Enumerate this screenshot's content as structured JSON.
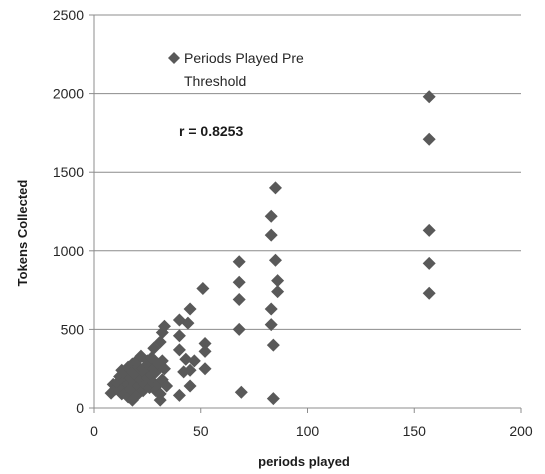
{
  "chart_data": {
    "type": "scatter",
    "xlabel": "periods played",
    "ylabel": "Tokens Collected",
    "xlim": [
      0,
      200
    ],
    "ylim": [
      0,
      2500
    ],
    "x_ticks": [
      "0",
      "50",
      "100",
      "150",
      "200"
    ],
    "y_ticks": [
      "0",
      "500",
      "1000",
      "1500",
      "2000",
      "2500"
    ],
    "grid": "horizontal",
    "legend_position": "top-left",
    "annotation": "r = 0.8253",
    "marker_color": "#595959",
    "series": [
      {
        "name": "Periods Played Pre Threshold",
        "legend_lines": [
          "Periods Played Pre",
          "Threshold"
        ],
        "points": [
          [
            8,
            95
          ],
          [
            9,
            150
          ],
          [
            10,
            120
          ],
          [
            11,
            160
          ],
          [
            12,
            110
          ],
          [
            12,
            200
          ],
          [
            13,
            90
          ],
          [
            13,
            240
          ],
          [
            14,
            170
          ],
          [
            14,
            130
          ],
          [
            15,
            100
          ],
          [
            15,
            210
          ],
          [
            16,
            150
          ],
          [
            16,
            260
          ],
          [
            16,
            70
          ],
          [
            17,
            190
          ],
          [
            17,
            120
          ],
          [
            18,
            280
          ],
          [
            18,
            50
          ],
          [
            18,
            230
          ],
          [
            19,
            150
          ],
          [
            19,
            100
          ],
          [
            20,
            200
          ],
          [
            20,
            300
          ],
          [
            20,
            80
          ],
          [
            21,
            260
          ],
          [
            21,
            140
          ],
          [
            22,
            180
          ],
          [
            22,
            330
          ],
          [
            23,
            110
          ],
          [
            23,
            250
          ],
          [
            24,
            220
          ],
          [
            24,
            150
          ],
          [
            25,
            300
          ],
          [
            25,
            190
          ],
          [
            26,
            270
          ],
          [
            26,
            130
          ],
          [
            27,
            210
          ],
          [
            27,
            320
          ],
          [
            28,
            250
          ],
          [
            28,
            160
          ],
          [
            28,
            380
          ],
          [
            29,
            110
          ],
          [
            29,
            230
          ],
          [
            30,
            280
          ],
          [
            30,
            150
          ],
          [
            31,
            420
          ],
          [
            31,
            90
          ],
          [
            31,
            50
          ],
          [
            32,
            480
          ],
          [
            32,
            300
          ],
          [
            32,
            180
          ],
          [
            33,
            520
          ],
          [
            33,
            250
          ],
          [
            34,
            140
          ],
          [
            40,
            560
          ],
          [
            40,
            460
          ],
          [
            40,
            370
          ],
          [
            40,
            80
          ],
          [
            42,
            230
          ],
          [
            43,
            310
          ],
          [
            44,
            540
          ],
          [
            45,
            630
          ],
          [
            45,
            240
          ],
          [
            45,
            140
          ],
          [
            47,
            300
          ],
          [
            51,
            760
          ],
          [
            52,
            410
          ],
          [
            52,
            360
          ],
          [
            52,
            250
          ],
          [
            68,
            930
          ],
          [
            68,
            800
          ],
          [
            68,
            690
          ],
          [
            68,
            500
          ],
          [
            69,
            100
          ],
          [
            83,
            1220
          ],
          [
            83,
            1100
          ],
          [
            83,
            630
          ],
          [
            83,
            530
          ],
          [
            84,
            400
          ],
          [
            84,
            60
          ],
          [
            85,
            1400
          ],
          [
            85,
            940
          ],
          [
            86,
            810
          ],
          [
            86,
            740
          ],
          [
            157,
            1980
          ],
          [
            157,
            1710
          ],
          [
            157,
            1130
          ],
          [
            157,
            920
          ],
          [
            157,
            730
          ]
        ]
      }
    ]
  }
}
